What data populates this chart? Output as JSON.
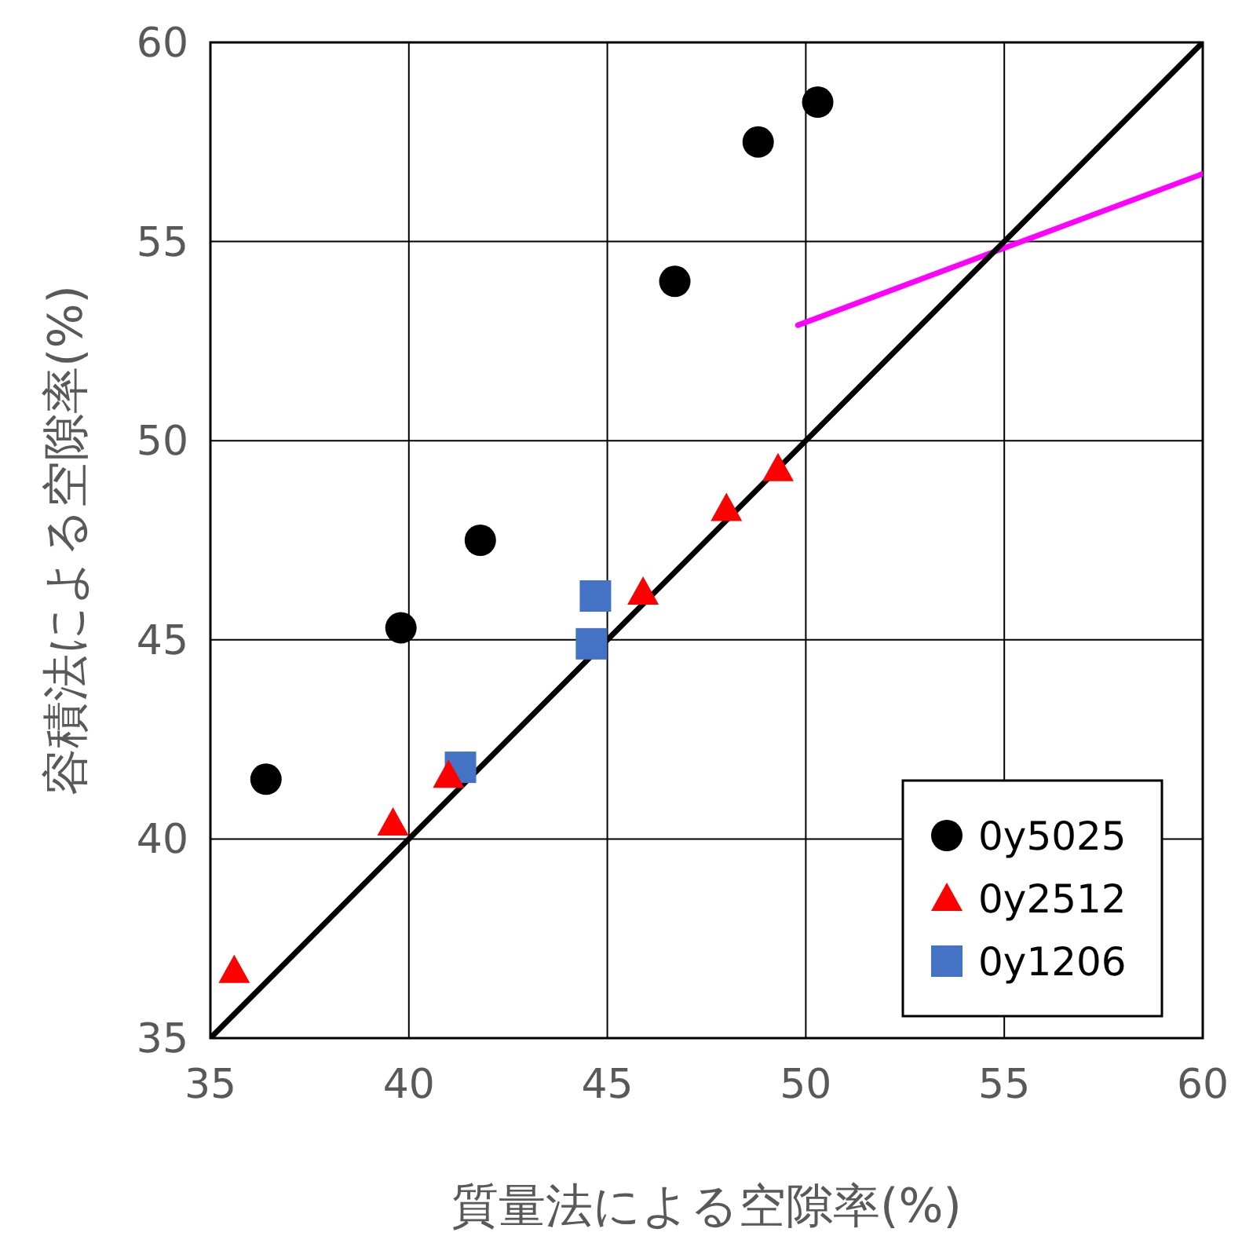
{
  "chart_data": {
    "type": "scatter",
    "xlabel": "質量法による空隙率(%)",
    "ylabel": "容積法による空隙率(%)",
    "xlim": [
      35,
      60
    ],
    "ylim": [
      35,
      60
    ],
    "xticks": [
      35,
      40,
      45,
      50,
      55,
      60
    ],
    "yticks": [
      35,
      40,
      45,
      50,
      55,
      60
    ],
    "grid": true,
    "legend": "bottom right",
    "series": [
      {
        "name": "0y5025",
        "color": "#000000",
        "marker": "circle",
        "x": [
          36.4,
          39.8,
          41.8,
          46.7,
          48.8,
          50.3
        ],
        "values": [
          41.5,
          45.3,
          47.5,
          54.0,
          57.5,
          58.5
        ]
      },
      {
        "name": "0y2512",
        "color": "#ff0000",
        "marker": "triangle",
        "x": [
          35.6,
          39.6,
          41.0,
          45.9,
          48.0,
          49.3
        ],
        "values": [
          36.7,
          40.4,
          41.6,
          46.2,
          48.3,
          49.3
        ]
      },
      {
        "name": "0y1206",
        "color": "#4472c4",
        "marker": "square",
        "x": [
          41.3,
          44.6,
          44.7
        ],
        "values": [
          41.8,
          44.9,
          46.1
        ]
      },
      {
        "type": "line",
        "color": "#000000",
        "x": [
          35,
          60
        ],
        "values": [
          35,
          60
        ]
      },
      {
        "type": "line",
        "color": "#ff00ff",
        "x": [
          49.8,
          60
        ],
        "values": [
          52.9,
          56.7
        ]
      }
    ]
  }
}
